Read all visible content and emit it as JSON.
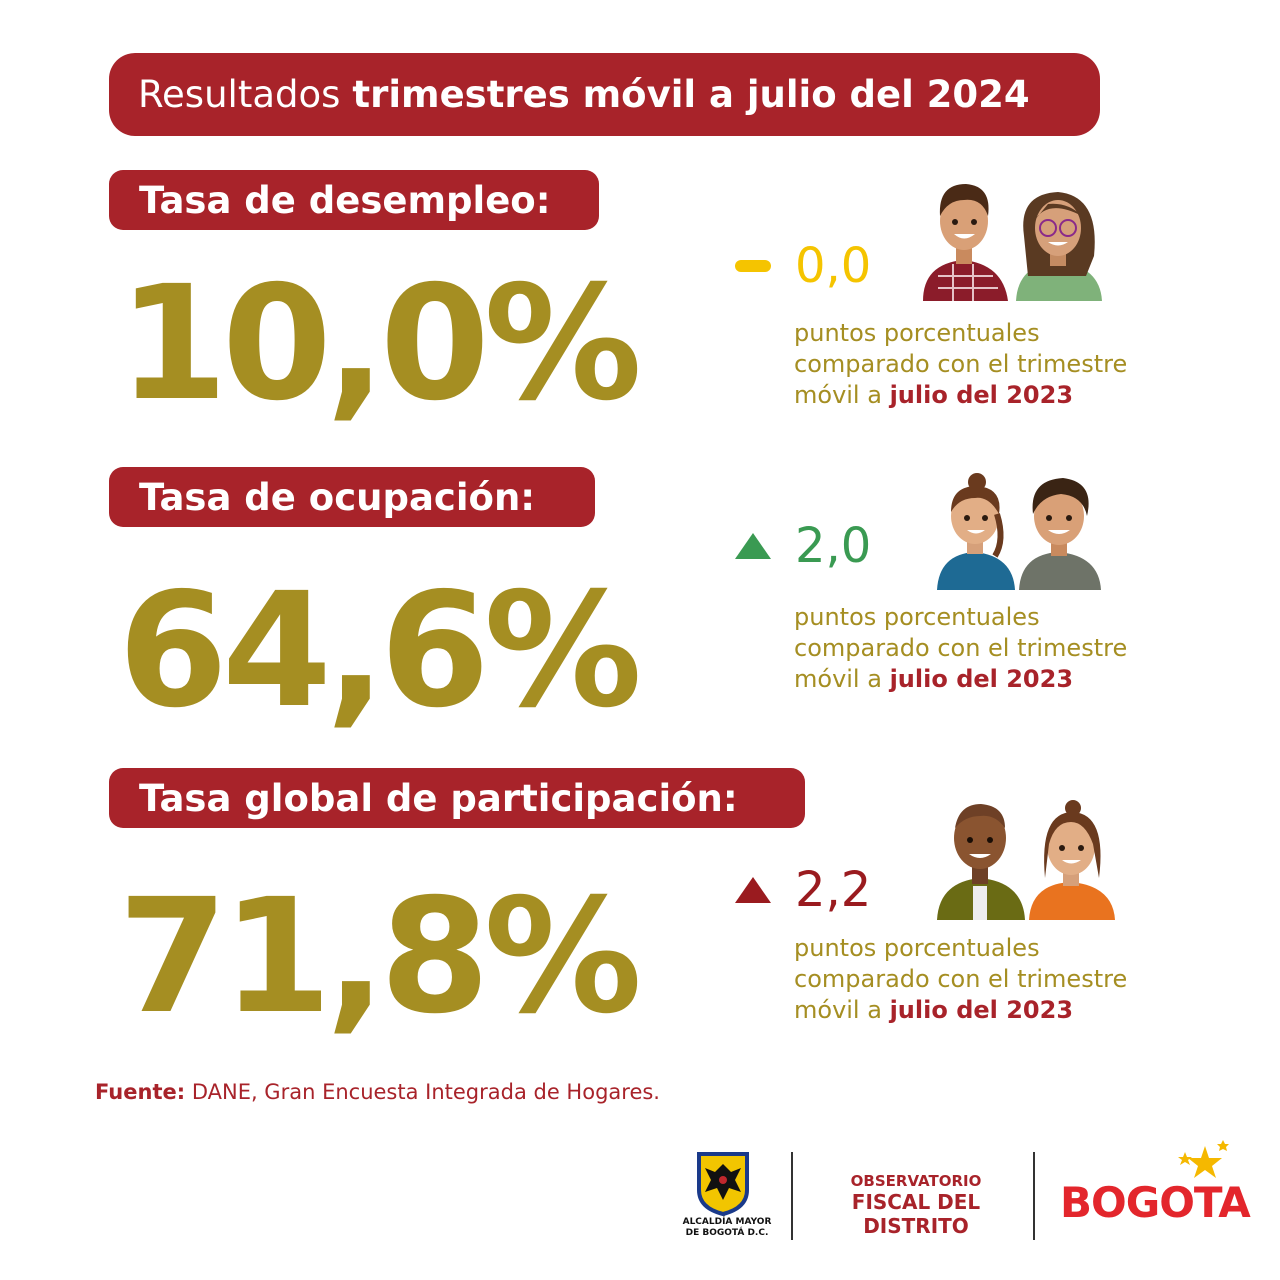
{
  "header": {
    "title_prefix": "Resultados",
    "title_bold": "trimestres móvil a julio del 2024"
  },
  "sections": [
    {
      "label": "Tasa de desempleo:",
      "value": "10,0%",
      "change": "0,0",
      "change_direction": "neutral",
      "change_color": "#f5c400",
      "note_line1": "puntos porcentuales",
      "note_line2": "comparado con el trimestre",
      "note_line3_prefix": "móvil a",
      "note_line3_bold": "julio del 2023"
    },
    {
      "label": "Tasa de ocupación:",
      "value": "64,6%",
      "change": "2,0",
      "change_direction": "up",
      "change_color": "#3a9a52",
      "note_line1": "puntos porcentuales",
      "note_line2": "comparado con el trimestre",
      "note_line3_prefix": "móvil a",
      "note_line3_bold": "julio del 2023"
    },
    {
      "label": "Tasa global de participación:",
      "value": "71,8%",
      "change": "2,2",
      "change_direction": "up",
      "change_color": "#9a1b1f",
      "note_line1": "puntos porcentuales",
      "note_line2": "comparado con el trimestre",
      "note_line3_prefix": "móvil a",
      "note_line3_bold": "julio del 2023"
    }
  ],
  "source": {
    "label": "Fuente:",
    "text": "DANE, Gran Encuesta Integrada de Hogares."
  },
  "footer": {
    "alcaldia_line1": "ALCALDÍA MAYOR",
    "alcaldia_line2": "DE BOGOTÁ D.C.",
    "observatorio_line1": "OBSERVATORIO",
    "observatorio_line2": "FISCAL DEL DISTRITO",
    "bogota_logo": "BOGOTA"
  },
  "colors": {
    "brand_red": "#a8232a",
    "gold": "#a58e22"
  }
}
